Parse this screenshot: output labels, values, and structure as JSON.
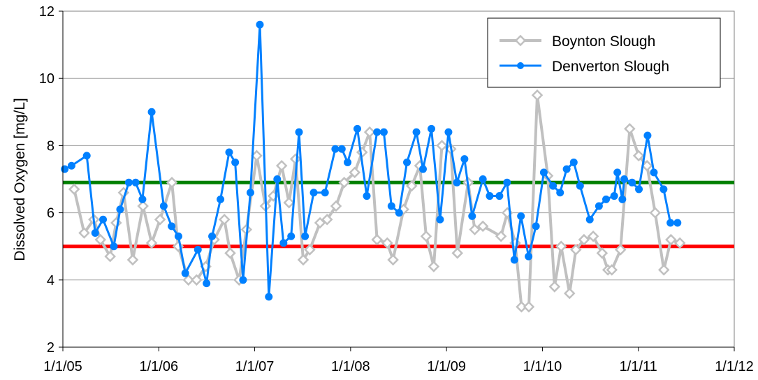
{
  "chart_data": {
    "type": "line",
    "title": "",
    "xlabel": "",
    "ylabel": "Dissolved Oxygen [mg/L]",
    "xlim": [
      "2005-01-01",
      "2012-01-01"
    ],
    "ylim": [
      2,
      12
    ],
    "x_ticks": [
      "1/1/05",
      "1/1/06",
      "1/1/07",
      "1/1/08",
      "1/1/09",
      "1/1/10",
      "1/1/11",
      "1/1/12"
    ],
    "y_ticks": [
      2,
      4,
      6,
      8,
      10,
      12
    ],
    "grid": "horizontal",
    "legend_position": "top-right",
    "reference_lines": [
      {
        "y": 6.9,
        "color": "#008000"
      },
      {
        "y": 5.0,
        "color": "#ff0000"
      }
    ],
    "series": [
      {
        "name": "Boynton Slough",
        "color": "#c0c0c0",
        "marker": "diamond-open",
        "points": [
          [
            "2005-02-13",
            6.7
          ],
          [
            "2005-03-23",
            5.4
          ],
          [
            "2005-04-29",
            5.8
          ],
          [
            "2005-05-24",
            5.2
          ],
          [
            "2005-06-30",
            4.7
          ],
          [
            "2005-07-23",
            5.7
          ],
          [
            "2005-08-20",
            6.6
          ],
          [
            "2005-09-24",
            4.6
          ],
          [
            "2005-11-02",
            6.2
          ],
          [
            "2005-12-05",
            5.1
          ],
          [
            "2006-01-06",
            5.8
          ],
          [
            "2006-02-20",
            6.9
          ],
          [
            "2006-03-16",
            5.0
          ],
          [
            "2006-04-24",
            4.0
          ],
          [
            "2006-05-25",
            4.0
          ],
          [
            "2006-06-29",
            4.4
          ],
          [
            "2006-07-31",
            5.2
          ],
          [
            "2006-09-08",
            5.8
          ],
          [
            "2006-09-30",
            4.8
          ],
          [
            "2006-11-03",
            4.0
          ],
          [
            "2006-12-01",
            5.5
          ],
          [
            "2007-01-09",
            7.7
          ],
          [
            "2007-02-11",
            6.2
          ],
          [
            "2007-03-13",
            6.5
          ],
          [
            "2007-04-14",
            7.4
          ],
          [
            "2007-05-12",
            6.3
          ],
          [
            "2007-06-06",
            7.6
          ],
          [
            "2007-07-05",
            4.6
          ],
          [
            "2007-07-30",
            4.9
          ],
          [
            "2007-09-07",
            5.7
          ],
          [
            "2007-10-04",
            5.8
          ],
          [
            "2007-11-07",
            6.2
          ],
          [
            "2007-12-08",
            6.9
          ],
          [
            "2008-01-17",
            7.2
          ],
          [
            "2008-02-14",
            7.8
          ],
          [
            "2008-03-14",
            8.4
          ],
          [
            "2008-04-11",
            5.2
          ],
          [
            "2008-05-20",
            5.1
          ],
          [
            "2008-06-11",
            4.6
          ],
          [
            "2008-07-21",
            6.1
          ],
          [
            "2008-08-21",
            6.8
          ],
          [
            "2008-09-21",
            7.4
          ],
          [
            "2008-10-15",
            5.3
          ],
          [
            "2008-11-13",
            4.4
          ],
          [
            "2008-12-14",
            8.0
          ],
          [
            "2009-01-17",
            7.9
          ],
          [
            "2009-02-11",
            4.8
          ],
          [
            "2009-03-24",
            6.9
          ],
          [
            "2009-04-18",
            5.5
          ],
          [
            "2009-05-19",
            5.6
          ],
          [
            "2009-07-27",
            5.3
          ],
          [
            "2009-08-20",
            6.0
          ],
          [
            "2009-09-19",
            5.1
          ],
          [
            "2009-10-13",
            3.2
          ],
          [
            "2009-11-10",
            3.2
          ],
          [
            "2009-12-12",
            9.5
          ],
          [
            "2010-01-21",
            7.1
          ],
          [
            "2010-02-16",
            3.8
          ],
          [
            "2010-03-13",
            5.0
          ],
          [
            "2010-04-14",
            3.6
          ],
          [
            "2010-05-08",
            4.9
          ],
          [
            "2010-06-08",
            5.2
          ],
          [
            "2010-07-13",
            5.3
          ],
          [
            "2010-08-16",
            4.8
          ],
          [
            "2010-09-07",
            4.3
          ],
          [
            "2010-09-22",
            4.3
          ],
          [
            "2010-10-25",
            4.9
          ],
          [
            "2010-11-29",
            8.5
          ],
          [
            "2011-01-02",
            7.7
          ],
          [
            "2011-02-03",
            7.4
          ],
          [
            "2011-03-06",
            6.0
          ],
          [
            "2011-04-08",
            4.3
          ],
          [
            "2011-05-05",
            5.2
          ],
          [
            "2011-06-08",
            5.1
          ]
        ]
      },
      {
        "name": "Denverton Slough",
        "color": "#0080ff",
        "marker": "circle",
        "points": [
          [
            "2005-01-08",
            7.3
          ],
          [
            "2005-02-03",
            7.4
          ],
          [
            "2005-04-02",
            7.7
          ],
          [
            "2005-05-04",
            5.4
          ],
          [
            "2005-06-03",
            5.8
          ],
          [
            "2005-07-14",
            5.0
          ],
          [
            "2005-08-07",
            6.1
          ],
          [
            "2005-09-09",
            6.9
          ],
          [
            "2005-10-05",
            6.9
          ],
          [
            "2005-10-31",
            6.4
          ],
          [
            "2005-12-05",
            9.0
          ],
          [
            "2006-01-20",
            6.2
          ],
          [
            "2006-02-19",
            5.6
          ],
          [
            "2006-03-17",
            5.3
          ],
          [
            "2006-04-12",
            4.2
          ],
          [
            "2006-05-30",
            4.9
          ],
          [
            "2006-07-02",
            3.9
          ],
          [
            "2006-07-23",
            5.3
          ],
          [
            "2006-08-24",
            6.4
          ],
          [
            "2006-09-26",
            7.8
          ],
          [
            "2006-10-19",
            7.5
          ],
          [
            "2006-11-18",
            4.0
          ],
          [
            "2006-12-16",
            6.6
          ],
          [
            "2007-01-21",
            11.6
          ],
          [
            "2007-02-24",
            3.5
          ],
          [
            "2007-03-28",
            7.0
          ],
          [
            "2007-04-21",
            5.1
          ],
          [
            "2007-05-20",
            5.3
          ],
          [
            "2007-06-19",
            8.4
          ],
          [
            "2007-07-12",
            5.3
          ],
          [
            "2007-08-14",
            6.6
          ],
          [
            "2007-09-26",
            6.6
          ],
          [
            "2007-11-04",
            7.9
          ],
          [
            "2007-11-29",
            7.9
          ],
          [
            "2007-12-21",
            7.5
          ],
          [
            "2008-01-27",
            8.5
          ],
          [
            "2008-03-03",
            6.5
          ],
          [
            "2008-04-11",
            8.4
          ],
          [
            "2008-05-07",
            8.4
          ],
          [
            "2008-06-05",
            6.2
          ],
          [
            "2008-07-04",
            6.0
          ],
          [
            "2008-08-03",
            7.5
          ],
          [
            "2008-09-08",
            8.4
          ],
          [
            "2008-10-03",
            7.3
          ],
          [
            "2008-11-04",
            8.5
          ],
          [
            "2008-12-07",
            5.8
          ],
          [
            "2009-01-08",
            8.4
          ],
          [
            "2009-02-09",
            6.9
          ],
          [
            "2009-03-10",
            7.6
          ],
          [
            "2009-04-08",
            5.9
          ],
          [
            "2009-05-19",
            7.0
          ],
          [
            "2009-06-14",
            6.5
          ],
          [
            "2009-07-21",
            6.5
          ],
          [
            "2009-08-19",
            6.9
          ],
          [
            "2009-09-16",
            4.6
          ],
          [
            "2009-10-11",
            5.9
          ],
          [
            "2009-11-09",
            4.7
          ],
          [
            "2009-12-07",
            5.6
          ],
          [
            "2010-01-06",
            7.2
          ],
          [
            "2010-02-10",
            6.8
          ],
          [
            "2010-03-09",
            6.6
          ],
          [
            "2010-04-03",
            7.3
          ],
          [
            "2010-04-30",
            7.5
          ],
          [
            "2010-05-24",
            6.8
          ],
          [
            "2010-06-30",
            5.8
          ],
          [
            "2010-08-04",
            6.2
          ],
          [
            "2010-08-31",
            6.4
          ],
          [
            "2010-10-01",
            6.5
          ],
          [
            "2010-10-13",
            7.2
          ],
          [
            "2010-11-01",
            6.4
          ],
          [
            "2010-11-08",
            7.0
          ],
          [
            "2010-12-08",
            6.9
          ],
          [
            "2011-01-03",
            6.7
          ],
          [
            "2011-02-05",
            8.3
          ],
          [
            "2011-03-01",
            7.2
          ],
          [
            "2011-04-07",
            6.7
          ],
          [
            "2011-05-03",
            5.7
          ],
          [
            "2011-05-30",
            5.7
          ]
        ]
      }
    ]
  }
}
